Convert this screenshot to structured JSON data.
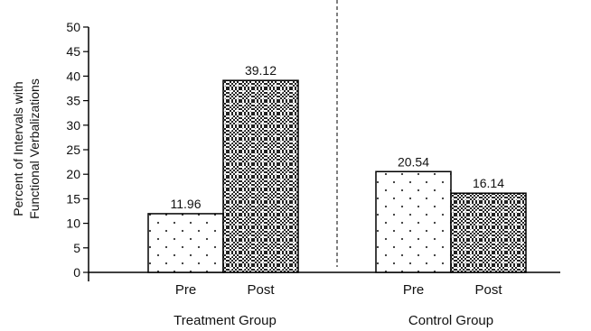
{
  "chart_data": {
    "type": "bar",
    "title": "",
    "ylabel": [
      "Percent of Intervals with",
      "Functional  Verbalizations"
    ],
    "xlabel": "",
    "ylim": [
      0,
      50
    ],
    "yticks": [
      0,
      5,
      10,
      15,
      20,
      25,
      30,
      35,
      40,
      45,
      50
    ],
    "grid": false,
    "legend": "none",
    "groups": [
      {
        "name": "Treatment Group",
        "bars": [
          {
            "label": "Pre",
            "value": 11.96,
            "value_label": "11.96",
            "pattern": "sparse-dots"
          },
          {
            "label": "Post",
            "value": 39.12,
            "value_label": "39.12",
            "pattern": "dense-crosshatch"
          }
        ]
      },
      {
        "name": "Control Group",
        "bars": [
          {
            "label": "Pre",
            "value": 20.54,
            "value_label": "20.54",
            "pattern": "sparse-dots"
          },
          {
            "label": "Post",
            "value": 16.14,
            "value_label": "16.14",
            "pattern": "dense-crosshatch"
          }
        ]
      }
    ],
    "separator": "dashed-vertical-line-between-groups"
  }
}
